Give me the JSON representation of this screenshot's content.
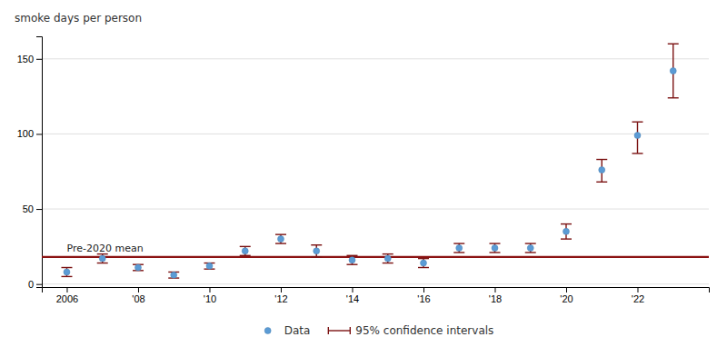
{
  "chart_data": {
    "type": "scatter",
    "y_label": "smoke days per person",
    "x": [
      2006,
      2007,
      2008,
      2009,
      2010,
      2011,
      2012,
      2013,
      2014,
      2015,
      2016,
      2017,
      2018,
      2019,
      2020,
      2021,
      2022,
      2023
    ],
    "series": [
      {
        "name": "Data",
        "color": "#5b9bd5",
        "marker": "circle",
        "values": [
          8,
          17,
          11,
          6,
          12,
          22,
          30,
          22,
          16,
          17,
          14,
          24,
          24,
          24,
          35,
          76,
          99,
          142
        ],
        "ci_lower": [
          5,
          14,
          9,
          4,
          10,
          19,
          27,
          18,
          13,
          14,
          11,
          21,
          21,
          21,
          30,
          68,
          87,
          124
        ],
        "ci_upper": [
          11,
          20,
          13,
          8,
          14,
          25,
          33,
          26,
          19,
          20,
          17,
          27,
          27,
          27,
          40,
          83,
          108,
          160
        ],
        "ci_label": "95% confidence intervals",
        "ci_color": "#7b1212"
      }
    ],
    "reference_line": {
      "value": 18,
      "label": "Pre-2020 mean",
      "color": "#8b1212"
    },
    "xlim": [
      2005.3,
      2024.0
    ],
    "xticks": [
      2006,
      {
        "value": 2008,
        "label": "'08"
      },
      {
        "value": 2010,
        "label": "'10"
      },
      {
        "value": 2012,
        "label": "'12"
      },
      {
        "value": 2014,
        "label": "'14"
      },
      {
        "value": 2016,
        "label": "'16"
      },
      {
        "value": 2018,
        "label": "'18"
      },
      {
        "value": 2020,
        "label": "'20"
      },
      {
        "value": 2022,
        "label": "'22"
      }
    ],
    "ylim": [
      -2,
      165
    ],
    "yticks": [
      0,
      50,
      100,
      150
    ],
    "grid": true,
    "legend": "bottom"
  }
}
